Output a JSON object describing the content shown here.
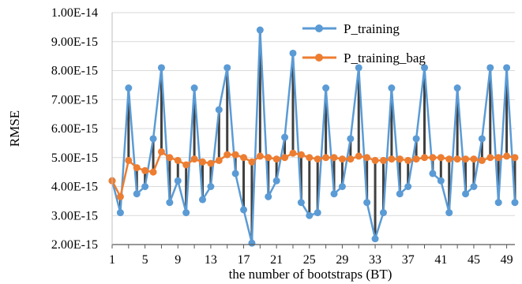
{
  "chart_data": {
    "type": "line",
    "xlabel": "the number of bootstraps (BT)",
    "ylabel": "RMSE",
    "yticks": [
      "2.00E-15",
      "3.00E-15",
      "4.00E-15",
      "5.00E-15",
      "6.00E-15",
      "7.00E-15",
      "8.00E-15",
      "9.00E-15",
      "1.00E-14"
    ],
    "xticks": [
      "1",
      "5",
      "9",
      "13",
      "17",
      "21",
      "25",
      "29",
      "33",
      "37",
      "41",
      "45",
      "49"
    ],
    "ylim": [
      2e-15,
      1e-14
    ],
    "xlim": [
      1,
      50
    ],
    "grid": "horizontal",
    "legend": "top-right",
    "x": [
      1,
      2,
      3,
      4,
      5,
      6,
      7,
      8,
      9,
      10,
      11,
      12,
      13,
      14,
      15,
      16,
      17,
      18,
      19,
      20,
      21,
      22,
      23,
      24,
      25,
      26,
      27,
      28,
      29,
      30,
      31,
      32,
      33,
      34,
      35,
      36,
      37,
      38,
      39,
      40,
      41,
      42,
      43,
      44,
      45,
      46,
      47,
      48,
      49,
      50
    ],
    "series": [
      {
        "name": "P_training",
        "color": "#5b9bd5",
        "values": [
          4.2e-15,
          3.1e-15,
          7.4e-15,
          3.75e-15,
          4e-15,
          5.65e-15,
          8.1e-15,
          3.45e-15,
          4.2e-15,
          3.1e-15,
          7.4e-15,
          3.55e-15,
          4e-15,
          6.65e-15,
          8.1e-15,
          4.45e-15,
          3.2e-15,
          2.05e-15,
          9.4e-15,
          3.65e-15,
          4.2e-15,
          5.7e-15,
          8.6e-15,
          3.45e-15,
          3e-15,
          3.1e-15,
          7.4e-15,
          3.75e-15,
          4e-15,
          5.65e-15,
          8.1e-15,
          3.45e-15,
          2.2e-15,
          3.1e-15,
          7.4e-15,
          3.75e-15,
          4e-15,
          5.65e-15,
          8.1e-15,
          4.45e-15,
          4.2e-15,
          3.1e-15,
          7.4e-15,
          3.75e-15,
          4e-15,
          5.65e-15,
          8.1e-15,
          3.45e-15,
          8.1e-15,
          3.45e-15
        ]
      },
      {
        "name": "P_training_bag",
        "color": "#ed7d31",
        "values": [
          4.2e-15,
          3.65e-15,
          4.9e-15,
          4.65e-15,
          4.55e-15,
          4.5e-15,
          5.2e-15,
          5e-15,
          4.9e-15,
          4.75e-15,
          4.95e-15,
          4.85e-15,
          4.8e-15,
          4.9e-15,
          5.1e-15,
          5.1e-15,
          5e-15,
          4.85e-15,
          5.05e-15,
          5e-15,
          4.95e-15,
          5e-15,
          5.15e-15,
          5.1e-15,
          5e-15,
          4.95e-15,
          5e-15,
          5e-15,
          4.95e-15,
          4.95e-15,
          5.05e-15,
          5e-15,
          4.9e-15,
          4.9e-15,
          4.95e-15,
          4.95e-15,
          4.9e-15,
          4.95e-15,
          5e-15,
          5e-15,
          5e-15,
          4.95e-15,
          4.95e-15,
          4.95e-15,
          4.95e-15,
          4.9e-15,
          5e-15,
          5e-15,
          5.05e-15,
          5e-15
        ]
      }
    ],
    "connector_color": "#404040"
  }
}
